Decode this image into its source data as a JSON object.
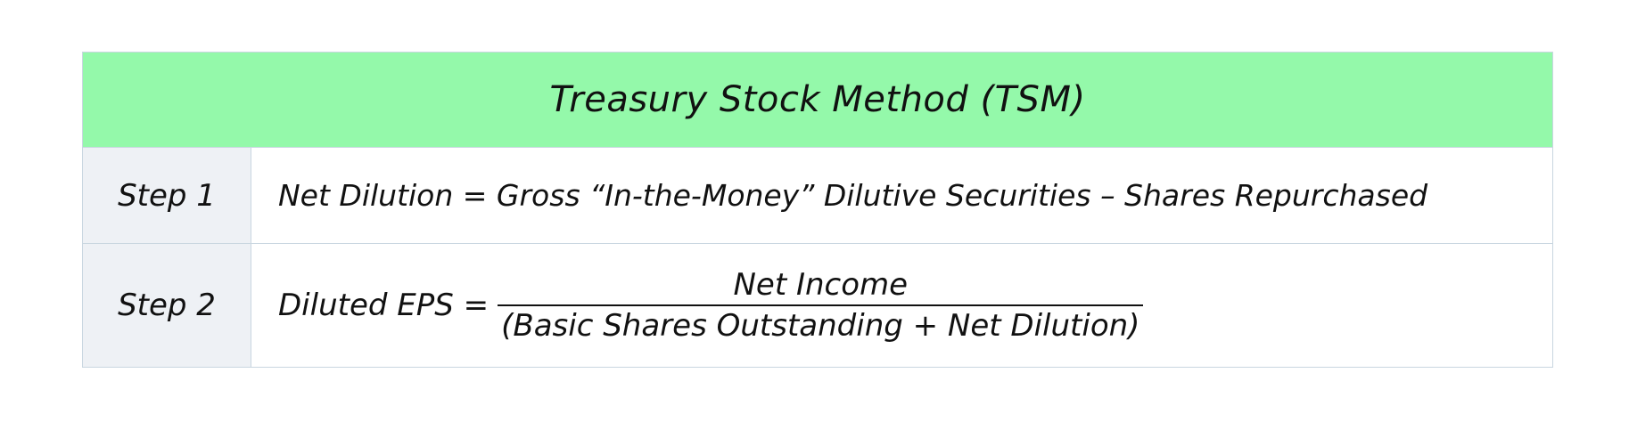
{
  "table": {
    "title": "Treasury Stock Method (TSM)",
    "header_color": "#94f9aa",
    "step_cell_color": "#eef1f5",
    "border_color": "#c9d6e0",
    "rows": [
      {
        "step": "Step 1",
        "formula": "Net Dilution = Gross “In-the-Money” Dilutive Securities – Shares Repurchased"
      },
      {
        "step": "Step 2",
        "lhs": "Diluted EPS =",
        "numerator": "Net Income",
        "denominator": "(Basic Shares Outstanding + Net Dilution)"
      }
    ]
  }
}
